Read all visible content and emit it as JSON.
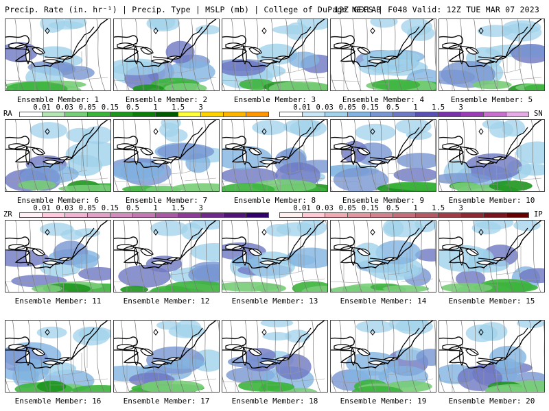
{
  "header": {
    "left_title": "Precip. Rate (in. hr⁻¹) | Precip. Type | MSLP (mb) | College of DuPage NEXLAB",
    "right_title": "12Z GEFS | F048 Valid: 12Z TUE MAR 07 2023"
  },
  "panels": [
    {
      "label": "Ensemble Member: 1"
    },
    {
      "label": "Ensemble Member: 2"
    },
    {
      "label": "Ensemble Member: 3"
    },
    {
      "label": "Ensemble Member: 4"
    },
    {
      "label": "Ensemble Member: 5"
    },
    {
      "label": "Ensemble Member: 6"
    },
    {
      "label": "Ensemble Member: 7"
    },
    {
      "label": "Ensemble Member: 8"
    },
    {
      "label": "Ensemble Member: 9"
    },
    {
      "label": "Ensemble Member: 10"
    },
    {
      "label": "Ensemble Member: 11"
    },
    {
      "label": "Ensemble Member: 12"
    },
    {
      "label": "Ensemble Member: 13"
    },
    {
      "label": "Ensemble Member: 14"
    },
    {
      "label": "Ensemble Member: 15"
    },
    {
      "label": "Ensemble Member: 16"
    },
    {
      "label": "Ensemble Member: 17"
    },
    {
      "label": "Ensemble Member: 18"
    },
    {
      "label": "Ensemble Member: 19"
    },
    {
      "label": "Ensemble Member: 20"
    }
  ],
  "legends": {
    "rain": {
      "code": "RA",
      "ticks": [
        "0.01",
        "0.03",
        "0.05",
        "0.15",
        "0.5",
        "1",
        "1.5",
        "3"
      ],
      "colors": [
        "#ffffff",
        "#b4e6b4",
        "#78cd78",
        "#3cb43c",
        "#1e961e",
        "#0a7d0a",
        "#005a00",
        "#ffff3c",
        "#ffd200",
        "#ffb400",
        "#ff9600"
      ]
    },
    "snow": {
      "code": "SN",
      "ticks": [
        "0.01",
        "0.03",
        "0.05",
        "0.15",
        "0.5",
        "1",
        "1.5",
        "3"
      ],
      "colors": [
        "#ffffff",
        "#c8e6f5",
        "#a0d2eb",
        "#82b4e1",
        "#7896d2",
        "#6e78c3",
        "#5a50b4",
        "#7832aa",
        "#9a3cb4",
        "#c86ecd",
        "#e6aae6"
      ]
    },
    "freezing_rain": {
      "code": "ZR",
      "ticks": [
        "0.01",
        "0.03",
        "0.05",
        "0.15",
        "0.5",
        "1",
        "1.5",
        "3"
      ],
      "colors": [
        "#fff0f5",
        "#ffc8dc",
        "#f0b4d2",
        "#e1a0c8",
        "#d28cbe",
        "#c378b4",
        "#aa5aa5",
        "#8c3c96",
        "#6e2887",
        "#501478",
        "#320069"
      ]
    },
    "sleet": {
      "code": "IP",
      "ticks": [
        "0.01",
        "0.03",
        "0.05",
        "0.15",
        "0.5",
        "1",
        "1.5",
        "3"
      ],
      "colors": [
        "#fff0f0",
        "#ffc8d2",
        "#f0aab4",
        "#e196a0",
        "#d2828c",
        "#c36e78",
        "#b45a64",
        "#a03c46",
        "#8c2832",
        "#78141e",
        "#640000"
      ]
    }
  }
}
